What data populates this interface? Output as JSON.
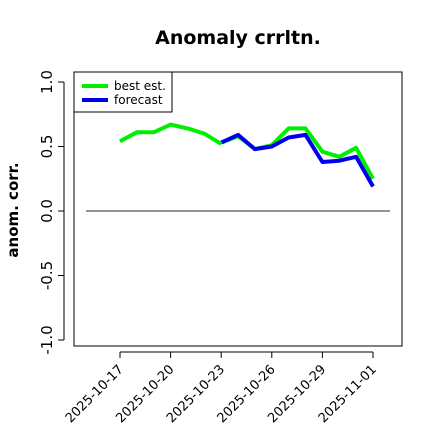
{
  "chart_data": {
    "type": "line",
    "title": "Anomaly crrltn.",
    "xlabel": "",
    "ylabel": "anom. corr.",
    "ylim": [
      -1.0,
      1.0
    ],
    "yticks": [
      -1.0,
      -0.5,
      0.0,
      0.5,
      1.0
    ],
    "ytick_labels": [
      "-1.0",
      "-0.5",
      "0.0",
      "0.5",
      "1.0"
    ],
    "xlim": [
      "2025-10-16",
      "2025-11-02"
    ],
    "xticks": [
      "2025-10-17",
      "2025-10-20",
      "2025-10-23",
      "2025-10-26",
      "2025-10-29",
      "2025-11-01"
    ],
    "xtick_colors": [
      "#000000",
      "#000000",
      "#2e8b2e",
      "#000000",
      "#000000",
      "#000000"
    ],
    "reference_line": {
      "y": 0.0,
      "color": "#555555"
    },
    "legend": {
      "placement": "top-left"
    },
    "grid": false,
    "series": [
      {
        "name": "best est.",
        "color": "#00ee00",
        "x": [
          "2025-10-17",
          "2025-10-18",
          "2025-10-19",
          "2025-10-20",
          "2025-10-21",
          "2025-10-22",
          "2025-10-23"
        ],
        "values": [
          0.54,
          0.61,
          0.61,
          0.67,
          0.64,
          0.6,
          0.52
        ]
      },
      {
        "name": "forecast",
        "color": "#0000ee",
        "x": [
          "2025-10-23",
          "2025-10-24",
          "2025-10-25",
          "2025-10-26",
          "2025-10-27",
          "2025-10-28",
          "2025-10-29",
          "2025-10-30",
          "2025-10-31",
          "2025-11-01"
        ],
        "values": [
          0.53,
          0.59,
          0.48,
          0.5,
          0.57,
          0.59,
          0.38,
          0.39,
          0.42,
          0.19
        ]
      },
      {
        "name": "",
        "color": "#00ee00",
        "x": [
          "2025-10-23",
          "2025-10-24",
          "2025-10-25",
          "2025-10-26",
          "2025-10-27",
          "2025-10-28",
          "2025-10-29",
          "2025-10-30",
          "2025-10-31",
          "2025-11-01"
        ],
        "values": [
          0.53,
          0.58,
          0.48,
          0.51,
          0.64,
          0.64,
          0.46,
          0.42,
          0.49,
          0.25
        ]
      }
    ]
  }
}
